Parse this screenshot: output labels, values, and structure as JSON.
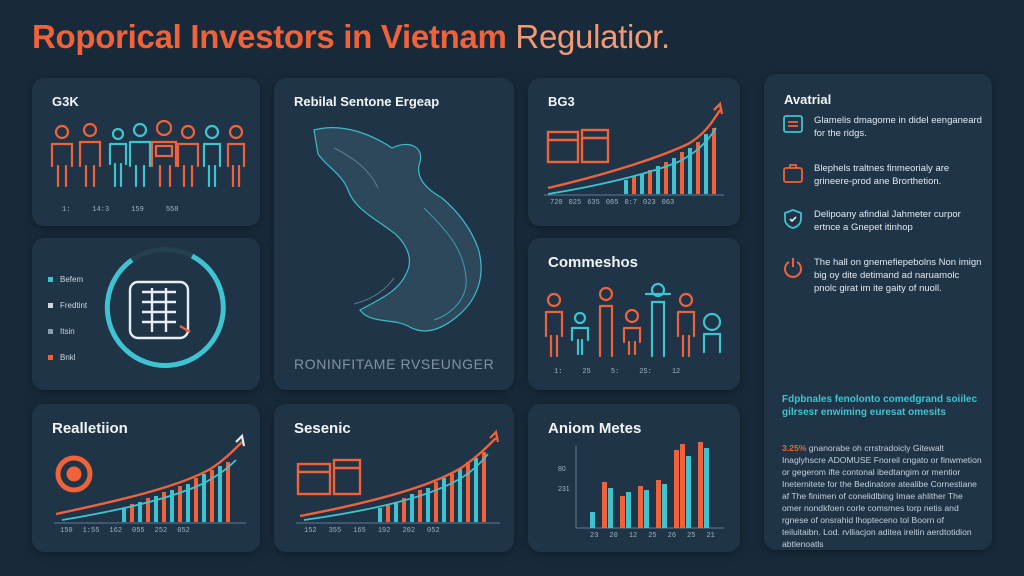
{
  "page": {
    "title_main": "Roporical Investors in Vietnam",
    "title_accent": "Regulatior."
  },
  "panels": {
    "people_top": {
      "label": "G3K",
      "ticks": [
        "1:",
        "14:3",
        "159",
        "558"
      ]
    },
    "ring": {
      "legend": [
        "Befem",
        "Fredtint",
        "Itsin",
        "Bnkl"
      ]
    },
    "map": {
      "label": "Rebilal Sentone Ergeap",
      "caption": "RONINFITAME RVSEUNGER"
    },
    "growth_top": {
      "label": "BG3",
      "ticks": [
        "720",
        "025",
        "635",
        "085",
        "0:7",
        "023",
        "063"
      ]
    },
    "people_mid": {
      "label": "Commeshos",
      "ticks": [
        "1:",
        "25",
        "5:",
        "2S:",
        "12"
      ]
    },
    "realletion": {
      "label": "Realletiion",
      "ticks": [
        "150",
        "1:55",
        "162",
        "055",
        "252",
        "052"
      ]
    },
    "sesenic": {
      "label": "Sesenic",
      "ticks": [
        "152",
        "355",
        "165",
        "192",
        "202",
        "052"
      ]
    },
    "aniom": {
      "label": "Aniom Metes",
      "yticks": [
        "80",
        "231"
      ],
      "xticks": [
        "23",
        "20",
        "12",
        "25",
        "26",
        "25",
        "21"
      ]
    }
  },
  "sidebar": {
    "title": "Avatrial",
    "items": [
      {
        "icon": "document-icon",
        "text": "Glamelis dmagome in didel eenganeard for the ridgs."
      },
      {
        "icon": "briefcase-icon",
        "text": "Blephels traltnes finmeorialy are grineere-prod ane Brorthetion."
      },
      {
        "icon": "shield-icon",
        "text": "Delipoany afindial Jahmeter curpor ertnce a Gnepet itinhop"
      },
      {
        "icon": "power-icon",
        "text": "The hall on gnemefiepebolns Non imign big oy dite detimand ad naruamolc pnolc girat im ite gaity of nuoll."
      }
    ],
    "highlight": "Fdpbnales fenolonto comedgrand soiilec gilrsesr enwiming euresat omesits",
    "body_lead": "3.25%",
    "body": "gnanorabe oh crrstradoicly Gitewalt Inaglyhscre ADOMUSE Fnoreil cngato or finwmetion or gegerom ifte contonal ibedtangim or mentior Ineternitete for the Bedinatore atealibe Cornestiane af The finimen of conelidlbing Imae ahlither The omer nondkfoen corle comsmes torp netis and rgnese of onsrahid lhopteceno tol Boorn of teiluitaibn. Lod. rvlliacjon aditea ireitin aerdtotidion abtlenoatls"
  },
  "colors": {
    "accent": "#f0623a",
    "teal": "#3fc3d0",
    "card": "#1f3447",
    "bg": "#182a3a"
  }
}
